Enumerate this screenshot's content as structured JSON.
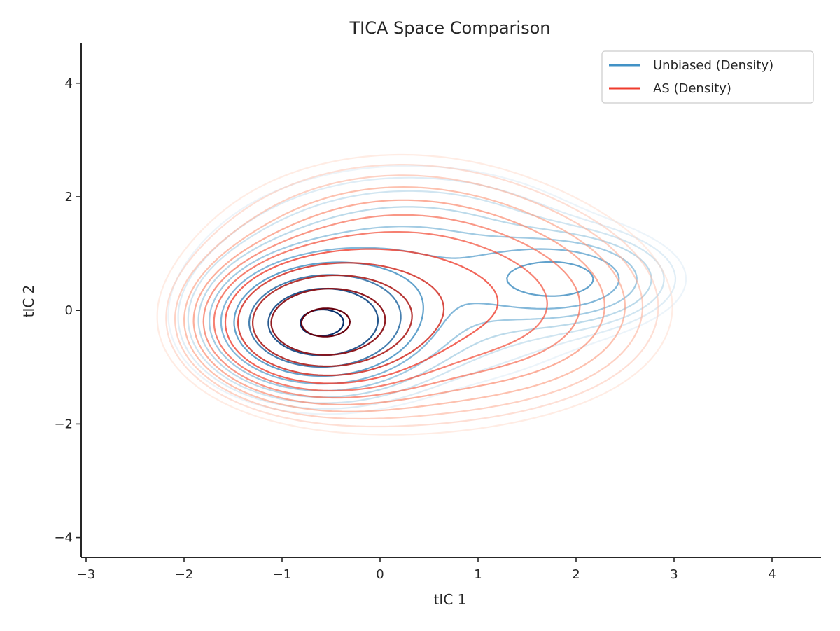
{
  "chart_data": {
    "type": "contour",
    "title": "TICA Space Comparison",
    "xlabel": "tIC 1",
    "ylabel": "tIC 2",
    "xlim": [
      -3.05,
      4.5
    ],
    "ylim": [
      -4.35,
      4.7
    ],
    "xticks": [
      -3,
      -2,
      -1,
      0,
      1,
      2,
      3,
      4
    ],
    "yticks": [
      -4,
      -2,
      0,
      2,
      4
    ],
    "xtick_labels": [
      "−3",
      "−2",
      "−1",
      "0",
      "1",
      "2",
      "3",
      "4"
    ],
    "ytick_labels": [
      "−4",
      "−2",
      "0",
      "2",
      "4"
    ],
    "grid": false,
    "legend_position": "top-right",
    "series": [
      {
        "name": "Unbiased (Density)",
        "color": "#4292c6",
        "colormap": [
          "#deebf7",
          "#9ecae1",
          "#4292c6",
          "#08306b"
        ],
        "levels": 10,
        "modes": [
          {
            "cx": -0.62,
            "cy": -0.25,
            "sx": 0.55,
            "sy": 0.58,
            "w": 1.0
          },
          {
            "cx": 1.88,
            "cy": 0.55,
            "sx": 0.55,
            "sy": 0.42,
            "w": 0.32
          },
          {
            "cx": 0.3,
            "cy": 0.6,
            "sx": 1.1,
            "sy": 1.0,
            "w": 0.22
          }
        ]
      },
      {
        "name": "AS (Density)",
        "color": "#ef3b2c",
        "colormap": [
          "#fee0d2",
          "#fc9272",
          "#ef3b2c",
          "#67000d"
        ],
        "levels": 12,
        "modes": [
          {
            "cx": -0.62,
            "cy": -0.25,
            "sx": 0.58,
            "sy": 0.6,
            "w": 1.0
          },
          {
            "cx": 0.2,
            "cy": 0.3,
            "sx": 1.05,
            "sy": 1.15,
            "w": 0.35
          },
          {
            "cx": 1.6,
            "cy": 0.0,
            "sx": 0.8,
            "sy": 0.9,
            "w": 0.12
          }
        ]
      }
    ]
  }
}
